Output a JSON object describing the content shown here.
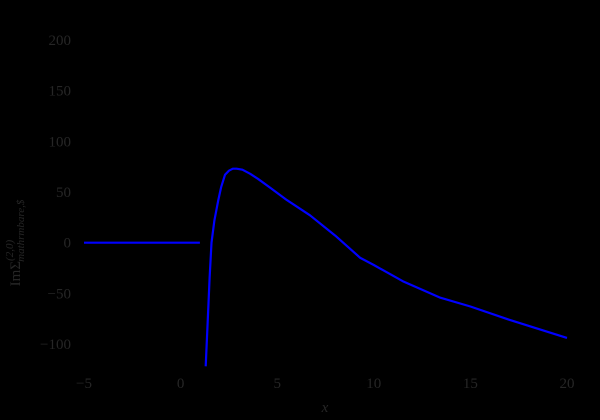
{
  "chart_data": {
    "type": "line",
    "title": "",
    "xlabel": "x",
    "ylabel": "ImΣ",
    "ylabel_superscript": "(2,0)",
    "ylabel_subscript": "mathrmbare,$",
    "xlim": [
      -5.2,
      21.2
    ],
    "ylim": [
      -128,
      222
    ],
    "x_ticks": [
      -5,
      0,
      5,
      10,
      15,
      20
    ],
    "x_tick_labels": [
      "−5",
      "0",
      "5",
      "10",
      "15",
      "20"
    ],
    "y_ticks": [
      200,
      150,
      100,
      50,
      0,
      -50,
      -100
    ],
    "y_tick_labels": [
      "200",
      "150",
      "100",
      "50",
      "0",
      "−50",
      "−100"
    ],
    "grid": false,
    "legend": null,
    "background": "#000000",
    "text_color": "#262626",
    "series": [
      {
        "name": "segment-flat",
        "color": "#0000ff",
        "x": [
          -5,
          0,
          1.0
        ],
        "y": [
          0,
          0,
          0
        ]
      },
      {
        "name": "segment-curve",
        "color": "#0000ff",
        "x": [
          1.3,
          1.4,
          1.5,
          1.6,
          1.75,
          1.95,
          2.1,
          2.3,
          2.5,
          2.7,
          2.9,
          3.2,
          3.6,
          4.0,
          4.65,
          5.5,
          6.7,
          8.0,
          9.3,
          10.0,
          11.5,
          13.4,
          15.0,
          17.0,
          18.5,
          20.0
        ],
        "y": [
          -122,
          -80,
          -35,
          0,
          22,
          42,
          55,
          67,
          71,
          73,
          73,
          72,
          68,
          63,
          54,
          42,
          27,
          7,
          -15,
          -22,
          -38,
          -54,
          -63,
          -76,
          -85,
          -94
        ]
      }
    ]
  }
}
